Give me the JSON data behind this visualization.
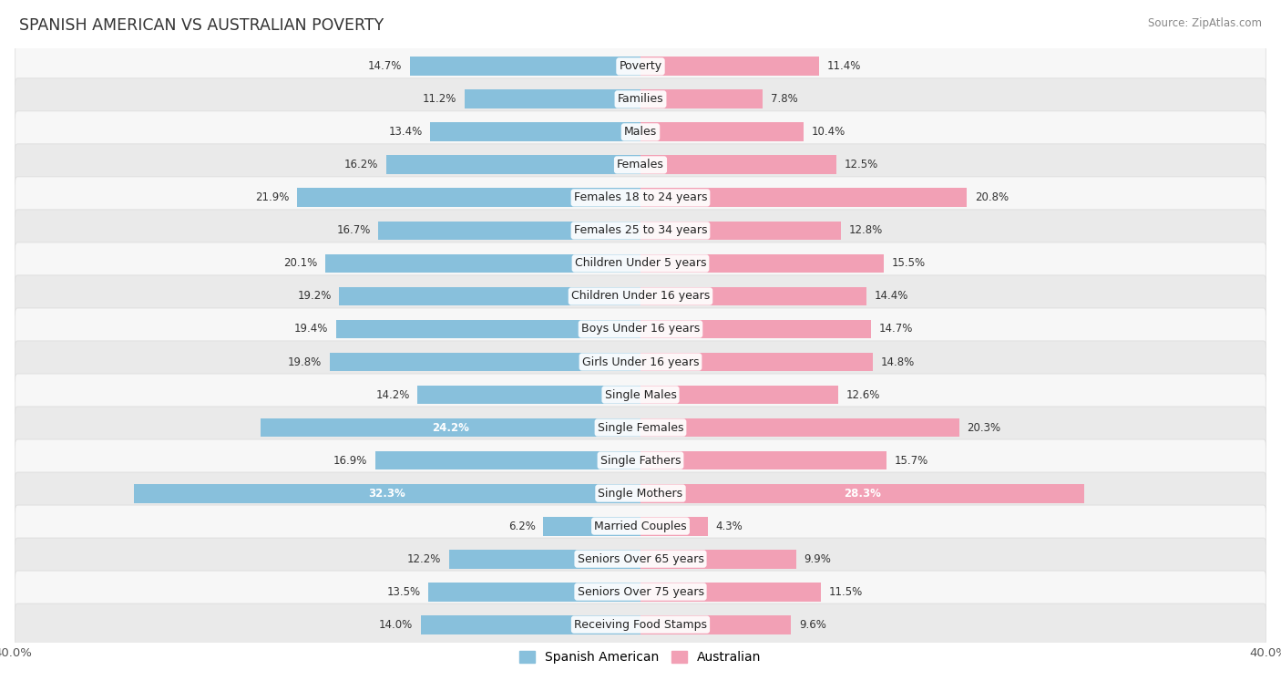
{
  "title": "SPANISH AMERICAN VS AUSTRALIAN POVERTY",
  "source": "Source: ZipAtlas.com",
  "categories": [
    "Poverty",
    "Families",
    "Males",
    "Females",
    "Females 18 to 24 years",
    "Females 25 to 34 years",
    "Children Under 5 years",
    "Children Under 16 years",
    "Boys Under 16 years",
    "Girls Under 16 years",
    "Single Males",
    "Single Females",
    "Single Fathers",
    "Single Mothers",
    "Married Couples",
    "Seniors Over 65 years",
    "Seniors Over 75 years",
    "Receiving Food Stamps"
  ],
  "spanish_american": [
    14.7,
    11.2,
    13.4,
    16.2,
    21.9,
    16.7,
    20.1,
    19.2,
    19.4,
    19.8,
    14.2,
    24.2,
    16.9,
    32.3,
    6.2,
    12.2,
    13.5,
    14.0
  ],
  "australian": [
    11.4,
    7.8,
    10.4,
    12.5,
    20.8,
    12.8,
    15.5,
    14.4,
    14.7,
    14.8,
    12.6,
    20.3,
    15.7,
    28.3,
    4.3,
    9.9,
    11.5,
    9.6
  ],
  "spanish_color": "#88C0DC",
  "australian_color": "#F2A0B5",
  "row_bg_light": "#F7F7F7",
  "row_bg_dark": "#EAEAEA",
  "fig_bg": "#FFFFFF",
  "axis_max": 40.0,
  "bar_height": 0.58,
  "label_fontsize": 9.0,
  "title_fontsize": 12.5,
  "value_fontsize": 8.5,
  "legend_labels": [
    "Spanish American",
    "Australian"
  ],
  "white_label_sa_threshold": 24.0,
  "white_label_au_threshold": 24.0
}
